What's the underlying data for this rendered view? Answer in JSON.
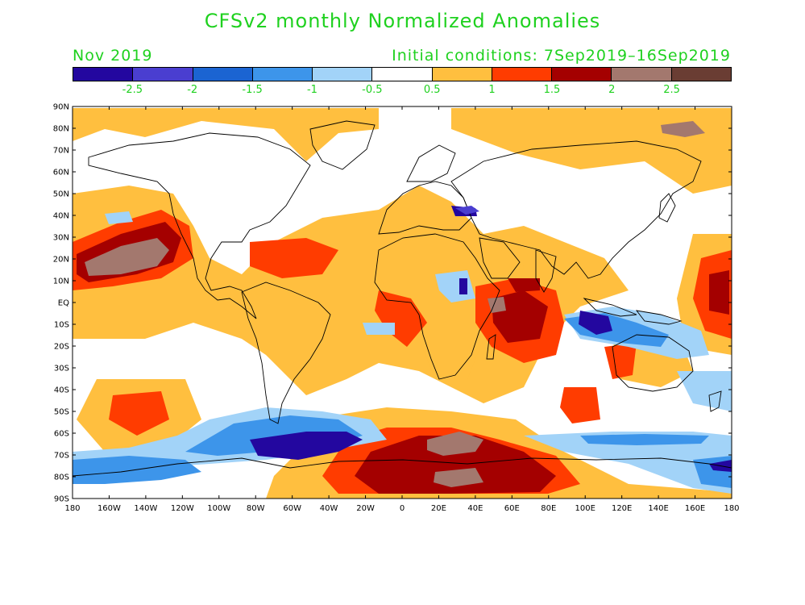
{
  "title": "CFSv2 monthly Normalized Anomalies",
  "subtitle_left": "Nov 2019",
  "subtitle_right": "Initial conditions: 7Sep2019–16Sep2019",
  "colors": {
    "title_text": "#1fd11f",
    "ocean_neutral": "#ffffff",
    "coastline": "#000000"
  },
  "colorbar": {
    "swatches": [
      "#23079f",
      "#4a3ed0",
      "#1b64d2",
      "#3d95ea",
      "#a2d3f8",
      "#ffffff",
      "#ffbf3f",
      "#ff3c00",
      "#a40000",
      "#a3786e",
      "#6a3d33"
    ],
    "labels": [
      "-2.5",
      "-2",
      "-1.5",
      "-1",
      "-0.5",
      "0.5",
      "1",
      "1.5",
      "2",
      "2.5"
    ]
  },
  "axes": {
    "lat_labels": [
      "90N",
      "80N",
      "70N",
      "60N",
      "50N",
      "40N",
      "30N",
      "20N",
      "10N",
      "EQ",
      "10S",
      "20S",
      "30S",
      "40S",
      "50S",
      "60S",
      "70S",
      "80S",
      "90S"
    ],
    "lon_labels": [
      "180",
      "160W",
      "140W",
      "120W",
      "100W",
      "80W",
      "60W",
      "40W",
      "20W",
      "0",
      "20E",
      "40E",
      "60E",
      "80E",
      "100E",
      "120E",
      "140E",
      "160E",
      "180"
    ]
  }
}
